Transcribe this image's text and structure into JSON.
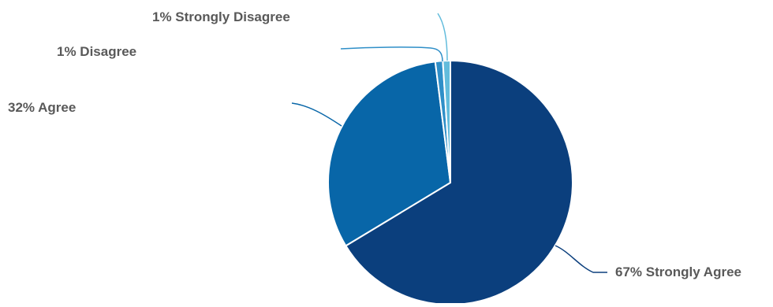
{
  "chart_data": {
    "type": "pie",
    "slices": [
      {
        "label": "67% Strongly Agree",
        "value": 67,
        "color": "#0b3f7d"
      },
      {
        "label": "32% Agree",
        "value": 32,
        "color": "#0866a8"
      },
      {
        "label": "1% Disagree",
        "value": 1,
        "color": "#2f8fc8"
      },
      {
        "label": "1% Strongly Disagree",
        "value": 1,
        "color": "#62bcdc"
      }
    ],
    "title": "",
    "legend": "none",
    "start_angle_deg": 0,
    "direction": "clockwise"
  }
}
